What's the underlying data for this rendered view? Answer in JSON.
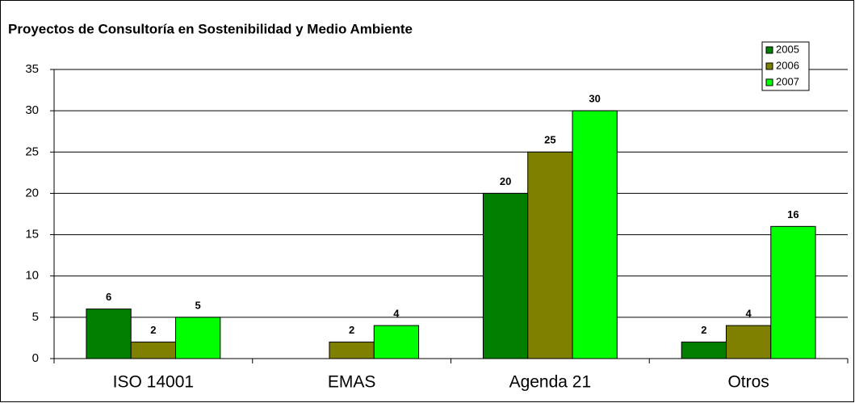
{
  "chart_data": {
    "type": "bar",
    "title": "Proyectos de Consultoría en Sostenibilidad y Medio Ambiente",
    "categories": [
      "ISO 14001",
      "EMAS",
      "Agenda 21",
      "Otros"
    ],
    "series": [
      {
        "name": "2005",
        "color": "#007f00",
        "values": [
          6,
          null,
          20,
          2
        ]
      },
      {
        "name": "2006",
        "color": "#808000",
        "values": [
          2,
          2,
          25,
          4
        ]
      },
      {
        "name": "2007",
        "color": "#00ff00",
        "values": [
          5,
          4,
          30,
          16
        ]
      }
    ],
    "ylim": [
      0,
      35
    ],
    "yticks": [
      0,
      5,
      10,
      15,
      20,
      25,
      30,
      35
    ],
    "grid": true,
    "legend": "top-right"
  }
}
